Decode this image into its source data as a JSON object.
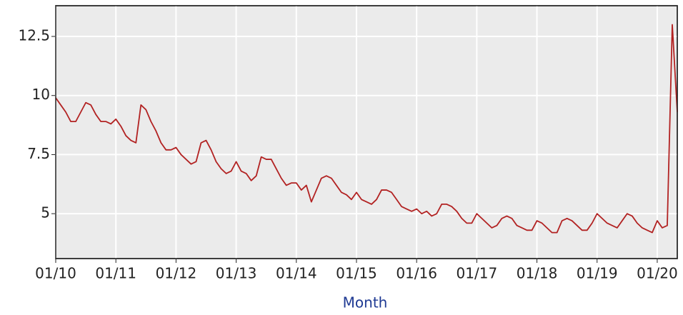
{
  "chart_data": {
    "type": "line",
    "x_label": "Month",
    "x": [
      "2010-01",
      "2010-02",
      "2010-03",
      "2010-04",
      "2010-05",
      "2010-06",
      "2010-07",
      "2010-08",
      "2010-09",
      "2010-10",
      "2010-11",
      "2010-12",
      "2011-01",
      "2011-02",
      "2011-03",
      "2011-04",
      "2011-05",
      "2011-06",
      "2011-07",
      "2011-08",
      "2011-09",
      "2011-10",
      "2011-11",
      "2011-12",
      "2012-01",
      "2012-02",
      "2012-03",
      "2012-04",
      "2012-05",
      "2012-06",
      "2012-07",
      "2012-08",
      "2012-09",
      "2012-10",
      "2012-11",
      "2012-12",
      "2013-01",
      "2013-02",
      "2013-03",
      "2013-04",
      "2013-05",
      "2013-06",
      "2013-07",
      "2013-08",
      "2013-09",
      "2013-10",
      "2013-11",
      "2013-12",
      "2014-01",
      "2014-02",
      "2014-03",
      "2014-04",
      "2014-05",
      "2014-06",
      "2014-07",
      "2014-08",
      "2014-09",
      "2014-10",
      "2014-11",
      "2014-12",
      "2015-01",
      "2015-02",
      "2015-03",
      "2015-04",
      "2015-05",
      "2015-06",
      "2015-07",
      "2015-08",
      "2015-09",
      "2015-10",
      "2015-11",
      "2015-12",
      "2016-01",
      "2016-02",
      "2016-03",
      "2016-04",
      "2016-05",
      "2016-06",
      "2016-07",
      "2016-08",
      "2016-09",
      "2016-10",
      "2016-11",
      "2016-12",
      "2017-01",
      "2017-02",
      "2017-03",
      "2017-04",
      "2017-05",
      "2017-06",
      "2017-07",
      "2017-08",
      "2017-09",
      "2017-10",
      "2017-11",
      "2017-12",
      "2018-01",
      "2018-02",
      "2018-03",
      "2018-04",
      "2018-05",
      "2018-06",
      "2018-07",
      "2018-08",
      "2018-09",
      "2018-10",
      "2018-11",
      "2018-12",
      "2019-01",
      "2019-02",
      "2019-03",
      "2019-04",
      "2019-05",
      "2019-06",
      "2019-07",
      "2019-08",
      "2019-09",
      "2019-10",
      "2019-11",
      "2019-12",
      "2020-01",
      "2020-02",
      "2020-03",
      "2020-04",
      "2020-05"
    ],
    "series": [
      {
        "color": "#b22222",
        "values": [
          9.9,
          9.6,
          9.3,
          8.9,
          8.9,
          9.3,
          9.7,
          9.6,
          9.2,
          8.9,
          8.9,
          8.8,
          9.0,
          8.7,
          8.3,
          8.1,
          8.0,
          9.6,
          9.4,
          8.9,
          8.5,
          8.0,
          7.7,
          7.7,
          7.8,
          7.5,
          7.3,
          7.1,
          7.2,
          8.0,
          8.1,
          7.7,
          7.2,
          6.9,
          6.7,
          6.8,
          7.2,
          6.8,
          6.7,
          6.4,
          6.6,
          7.4,
          7.3,
          7.3,
          6.9,
          6.5,
          6.2,
          6.3,
          6.3,
          6.0,
          6.2,
          5.5,
          6.0,
          6.5,
          6.6,
          6.5,
          6.2,
          5.9,
          5.8,
          5.6,
          5.9,
          5.6,
          5.5,
          5.4,
          5.6,
          6.0,
          6.0,
          5.9,
          5.6,
          5.3,
          5.2,
          5.1,
          5.2,
          5.0,
          5.1,
          4.9,
          5.0,
          5.4,
          5.4,
          5.3,
          5.1,
          4.8,
          4.6,
          4.6,
          5.0,
          4.8,
          4.6,
          4.4,
          4.5,
          4.8,
          4.9,
          4.8,
          4.5,
          4.4,
          4.3,
          4.3,
          4.7,
          4.6,
          4.4,
          4.2,
          4.2,
          4.7,
          4.8,
          4.7,
          4.5,
          4.3,
          4.3,
          4.6,
          5.0,
          4.8,
          4.6,
          4.5,
          4.4,
          4.7,
          5.0,
          4.9,
          4.6,
          4.4,
          4.3,
          4.2,
          4.7,
          4.4,
          4.5,
          13.0,
          9.3
        ]
      }
    ],
    "xlim": [
      "2010-01",
      "2020-05"
    ],
    "xticks": [
      {
        "value": "2010-01",
        "label": "01/10"
      },
      {
        "value": "2011-01",
        "label": "01/11"
      },
      {
        "value": "2012-01",
        "label": "01/12"
      },
      {
        "value": "2013-01",
        "label": "01/13"
      },
      {
        "value": "2014-01",
        "label": "01/14"
      },
      {
        "value": "2015-01",
        "label": "01/15"
      },
      {
        "value": "2016-01",
        "label": "01/16"
      },
      {
        "value": "2017-01",
        "label": "01/17"
      },
      {
        "value": "2018-01",
        "label": "01/18"
      },
      {
        "value": "2019-01",
        "label": "01/19"
      },
      {
        "value": "2020-01",
        "label": "01/20"
      }
    ],
    "ylim": [
      3.1,
      13.8
    ],
    "yticks": [
      5,
      7.5,
      10,
      12.5
    ],
    "grid": true
  }
}
